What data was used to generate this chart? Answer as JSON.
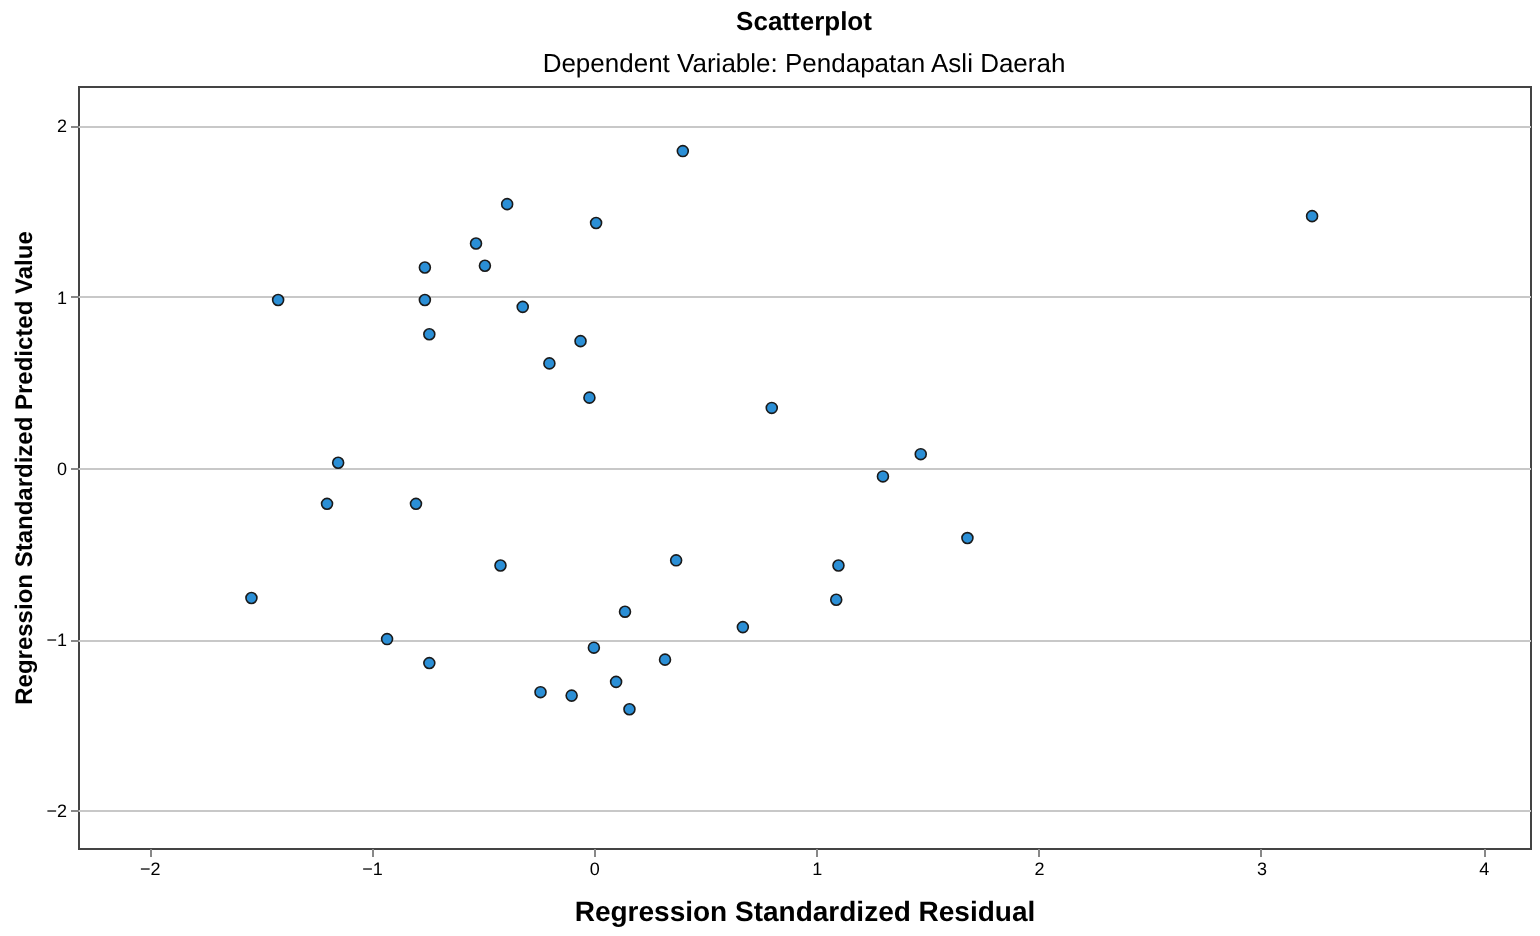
{
  "chart_data": {
    "type": "scatter",
    "title": "Scatterplot",
    "subtitle": "Dependent Variable: Pendapatan Asli Daerah",
    "xlabel": "Regression Standardized Residual",
    "ylabel": "Regression Standardized Predicted Value",
    "x": [
      0.4,
      3.23,
      -0.39,
      0.01,
      -0.53,
      -0.49,
      -0.76,
      -1.42,
      -0.76,
      -0.32,
      -0.06,
      -0.74,
      -0.2,
      -0.02,
      0.8,
      -1.15,
      -1.2,
      -0.8,
      1.47,
      1.3,
      1.68,
      -1.54,
      -0.42,
      0.37,
      1.1,
      1.09,
      0.14,
      0.67,
      -0.93,
      0.0,
      -0.74,
      0.32,
      0.1,
      -0.24,
      -0.1,
      0.16
    ],
    "series": [
      {
        "color": "#2b8fd6",
        "values": [
          1.85,
          1.47,
          1.54,
          1.43,
          1.31,
          1.18,
          1.17,
          0.98,
          0.98,
          0.94,
          0.74,
          0.78,
          0.61,
          0.41,
          0.35,
          0.03,
          -0.21,
          -0.21,
          0.08,
          -0.05,
          -0.41,
          -0.76,
          -0.57,
          -0.54,
          -0.57,
          -0.77,
          -0.84,
          -0.93,
          -1.0,
          -1.05,
          -1.14,
          -1.12,
          -1.25,
          -1.31,
          -1.33,
          -1.41
        ]
      }
    ],
    "xlim": [
      -2.32,
      4.21
    ],
    "ylim": [
      -2.22,
      2.23
    ],
    "xticks": [
      -2,
      -1,
      0,
      1,
      2,
      3,
      4
    ],
    "yticks": [
      -2,
      -1,
      0,
      1,
      2
    ],
    "grid": "y",
    "marker": "circle",
    "legend": false
  }
}
